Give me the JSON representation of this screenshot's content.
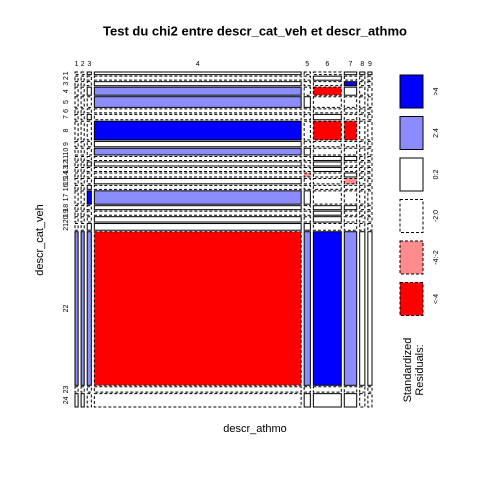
{
  "chart_data": {
    "type": "mosaic",
    "title": "Test du chi2 entre descr_cat_veh et descr_athmo",
    "x_label": "descr_athmo",
    "y_label": "descr_cat_veh",
    "columns": [
      "1",
      "2",
      "3",
      "4",
      "5",
      "6",
      "7",
      "8",
      "9"
    ],
    "rows": [
      "1",
      "2",
      "3",
      "4",
      "5",
      "6",
      "7",
      "8",
      "9",
      "10",
      "11",
      "12",
      "13",
      "14",
      "15",
      "16",
      "17",
      "18",
      "19",
      "20",
      "21",
      "22",
      "23",
      "24"
    ],
    "col_widths": [
      3,
      3,
      4,
      200,
      6,
      27,
      12,
      5,
      4
    ],
    "row_heights": [
      2,
      3,
      3,
      6,
      8,
      3,
      4,
      14,
      4,
      5,
      3,
      3,
      3,
      3,
      4,
      3,
      10,
      3,
      3,
      4,
      5,
      115,
      4,
      10
    ],
    "residual_class": [
      [
        2,
        2,
        2,
        2,
        2,
        2,
        2,
        2,
        2,
        2,
        2,
        2,
        2,
        2,
        2,
        2,
        2,
        2,
        2,
        2,
        2,
        4,
        2,
        3
      ],
      [
        2,
        2,
        2,
        2,
        2,
        2,
        2,
        2,
        2,
        2,
        2,
        2,
        2,
        2,
        2,
        2,
        2,
        2,
        2,
        2,
        2,
        4,
        2,
        3
      ],
      [
        3,
        2,
        2,
        3,
        2,
        2,
        3,
        2,
        2,
        2,
        2,
        3,
        2,
        2,
        2,
        3,
        5,
        2,
        2,
        2,
        3,
        4,
        2,
        2
      ],
      [
        3,
        2,
        3,
        4,
        4,
        2,
        2,
        5,
        3,
        4,
        2,
        3,
        2,
        2,
        3,
        2,
        4,
        3,
        2,
        3,
        3,
        0,
        2,
        2
      ],
      [
        2,
        2,
        2,
        2,
        3,
        2,
        2,
        2,
        2,
        3,
        2,
        2,
        2,
        1,
        2,
        2,
        3,
        2,
        2,
        2,
        3,
        4,
        2,
        3
      ],
      [
        2,
        3,
        2,
        0,
        2,
        2,
        3,
        0,
        2,
        2,
        3,
        3,
        3,
        2,
        2,
        2,
        2,
        3,
        3,
        3,
        2,
        5,
        2,
        3
      ],
      [
        3,
        2,
        5,
        3,
        2,
        2,
        2,
        0,
        2,
        2,
        3,
        2,
        2,
        3,
        1,
        2,
        2,
        3,
        2,
        2,
        2,
        4,
        2,
        3
      ],
      [
        3,
        2,
        2,
        2,
        2,
        2,
        2,
        2,
        2,
        2,
        2,
        2,
        2,
        2,
        2,
        2,
        2,
        2,
        2,
        2,
        2,
        3,
        2,
        2
      ],
      [
        3,
        2,
        2,
        2,
        2,
        2,
        2,
        2,
        2,
        2,
        2,
        2,
        2,
        2,
        2,
        2,
        2,
        2,
        2,
        2,
        2,
        3,
        2,
        2
      ]
    ],
    "legend_title": "Standardized\nResiduals:",
    "legend": [
      {
        "label": "<-4",
        "color": "#ff0000",
        "dashed": true
      },
      {
        "label": "-4:-2",
        "color": "#ff8c8c",
        "dashed": true
      },
      {
        "label": "-2:0",
        "color": "#ffffff",
        "dashed": true
      },
      {
        "label": "0:2",
        "color": "#ffffff",
        "dashed": false
      },
      {
        "label": "2:4",
        "color": "#8c8cff",
        "dashed": false
      },
      {
        "label": ">4",
        "color": "#0000ff",
        "dashed": false
      }
    ]
  }
}
